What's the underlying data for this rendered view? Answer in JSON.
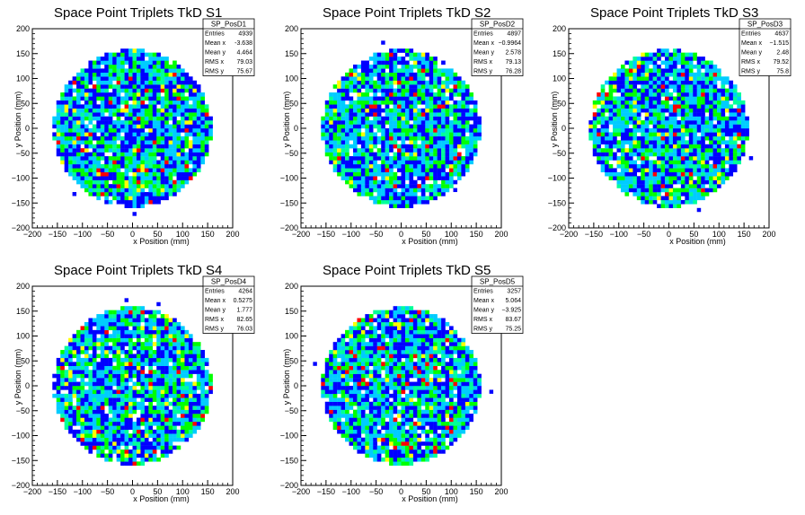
{
  "colors": {
    "palette": [
      "#0000ff",
      "#00ccff",
      "#00ff99",
      "#00ff00",
      "#ffff00",
      "#ff0000"
    ],
    "background": "#ffffff"
  },
  "chart_data": [
    {
      "type": "heatmap",
      "title": "Space Point Triplets TkD S1",
      "xlabel": "x Position (mm)",
      "ylabel": "y Position (mm)",
      "xlim": [
        -200,
        200
      ],
      "ylim": [
        -200,
        200
      ],
      "xticks": [
        "−200",
        "−150",
        "−100",
        "−50",
        "0",
        "50",
        "100",
        "150",
        "200"
      ],
      "yticks": [
        "−200",
        "−150",
        "−100",
        "−50",
        "0",
        "50",
        "100",
        "150",
        "200"
      ],
      "bin_width_mm": 8,
      "occupied_radius_mm": 160,
      "stats": {
        "name": "SP_PosD1",
        "rows": [
          [
            "Entries",
            "4939"
          ],
          [
            "Mean x",
            "-3.638"
          ],
          [
            "Mean y",
            "4.464"
          ],
          [
            "RMS x",
            "79.03"
          ],
          [
            "RMS y",
            "75.67"
          ]
        ]
      }
    },
    {
      "type": "heatmap",
      "title": "Space Point Triplets TkD S2",
      "xlabel": "x Position (mm)",
      "ylabel": "y Position (mm)",
      "xlim": [
        -200,
        200
      ],
      "ylim": [
        -200,
        200
      ],
      "xticks": [
        "−200",
        "−150",
        "−100",
        "−50",
        "0",
        "50",
        "100",
        "150",
        "200"
      ],
      "yticks": [
        "−200",
        "−150",
        "−100",
        "−50",
        "0",
        "50",
        "100",
        "150",
        "200"
      ],
      "bin_width_mm": 8,
      "occupied_radius_mm": 160,
      "stats": {
        "name": "SP_PosD2",
        "rows": [
          [
            "Entries",
            "4897"
          ],
          [
            "Mean x",
            "−0.9964"
          ],
          [
            "Mean y",
            "2.578"
          ],
          [
            "RMS x",
            "79.13"
          ],
          [
            "RMS y",
            "76.28"
          ]
        ]
      }
    },
    {
      "type": "heatmap",
      "title": "Space Point Triplets TkD S3",
      "xlabel": "x Position (mm)",
      "ylabel": "y Position (mm)",
      "xlim": [
        -200,
        200
      ],
      "ylim": [
        -200,
        200
      ],
      "xticks": [
        "−200",
        "−150",
        "−100",
        "−50",
        "0",
        "50",
        "100",
        "150",
        "200"
      ],
      "yticks": [
        "−200",
        "−150",
        "−100",
        "−50",
        "0",
        "50",
        "100",
        "150",
        "200"
      ],
      "bin_width_mm": 8,
      "occupied_radius_mm": 160,
      "stats": {
        "name": "SP_PosD3",
        "rows": [
          [
            "Entries",
            "4637"
          ],
          [
            "Mean x",
            "−1.515"
          ],
          [
            "Mean y",
            "2.48"
          ],
          [
            "RMS x",
            "79.52"
          ],
          [
            "RMS y",
            "75.8"
          ]
        ]
      }
    },
    {
      "type": "heatmap",
      "title": "Space Point Triplets TkD S4",
      "xlabel": "x Position (mm)",
      "ylabel": "y Position (mm)",
      "xlim": [
        -200,
        200
      ],
      "ylim": [
        -200,
        200
      ],
      "xticks": [
        "−200",
        "−150",
        "−100",
        "−50",
        "0",
        "50",
        "100",
        "150",
        "200"
      ],
      "yticks": [
        "−200",
        "−150",
        "−100",
        "−50",
        "0",
        "50",
        "100",
        "150",
        "200"
      ],
      "bin_width_mm": 8,
      "occupied_radius_mm": 160,
      "stats": {
        "name": "SP_PosD4",
        "rows": [
          [
            "Entries",
            "4264"
          ],
          [
            "Mean x",
            "0.5275"
          ],
          [
            "Mean y",
            "1.777"
          ],
          [
            "RMS x",
            "82.65"
          ],
          [
            "RMS y",
            "76.03"
          ]
        ]
      }
    },
    {
      "type": "heatmap",
      "title": "Space Point Triplets TkD S5",
      "xlabel": "x Position (mm)",
      "ylabel": "y Position (mm)",
      "xlim": [
        -200,
        200
      ],
      "ylim": [
        -200,
        200
      ],
      "xticks": [
        "−200",
        "−150",
        "−100",
        "−50",
        "0",
        "50",
        "100",
        "150",
        "200"
      ],
      "yticks": [
        "−200",
        "−150",
        "−100",
        "−50",
        "0",
        "50",
        "100",
        "150",
        "200"
      ],
      "bin_width_mm": 8,
      "occupied_radius_mm": 160,
      "stats": {
        "name": "SP_PosD5",
        "rows": [
          [
            "Entries",
            "3257"
          ],
          [
            "Mean x",
            "5.064"
          ],
          [
            "Mean y",
            "−3.925"
          ],
          [
            "RMS x",
            "83.67"
          ],
          [
            "RMS y",
            "75.25"
          ]
        ]
      }
    }
  ]
}
